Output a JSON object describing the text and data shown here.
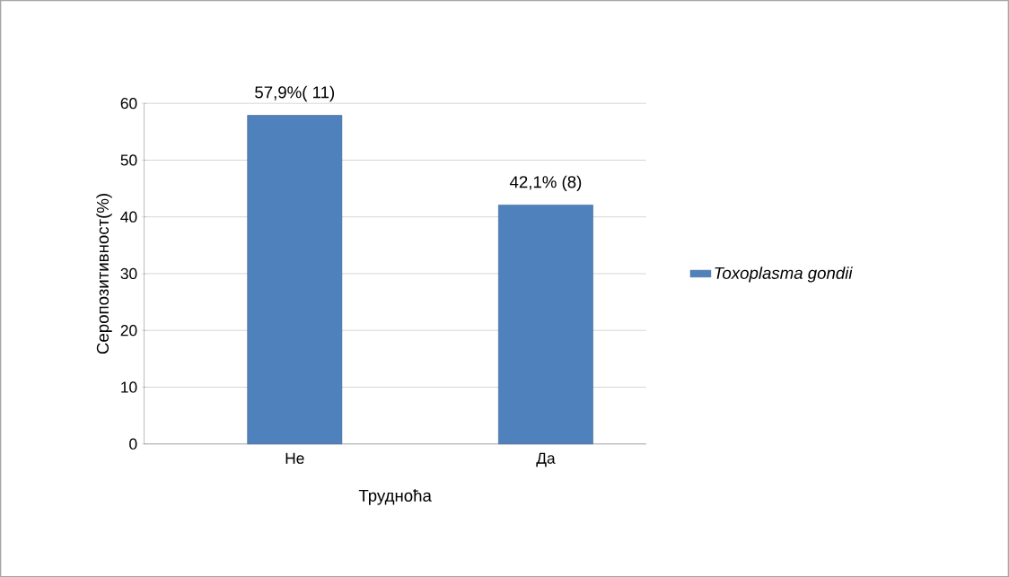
{
  "chart_data": {
    "type": "bar",
    "xlabel": "Трудноћа",
    "ylabel": "Серопозитивност(%)",
    "categories": [
      "Не",
      "Да"
    ],
    "series": [
      {
        "name": "Toxoplasma gondii",
        "color": "#4f81bd",
        "values": [
          57.9,
          42.1
        ],
        "value_labels": [
          "57,9%( 11)",
          "42,1% (8)"
        ]
      }
    ],
    "ylim": [
      0,
      60
    ],
    "yticks": [
      0,
      10,
      20,
      30,
      40,
      50,
      60
    ],
    "grid": "y",
    "legend": "right"
  }
}
